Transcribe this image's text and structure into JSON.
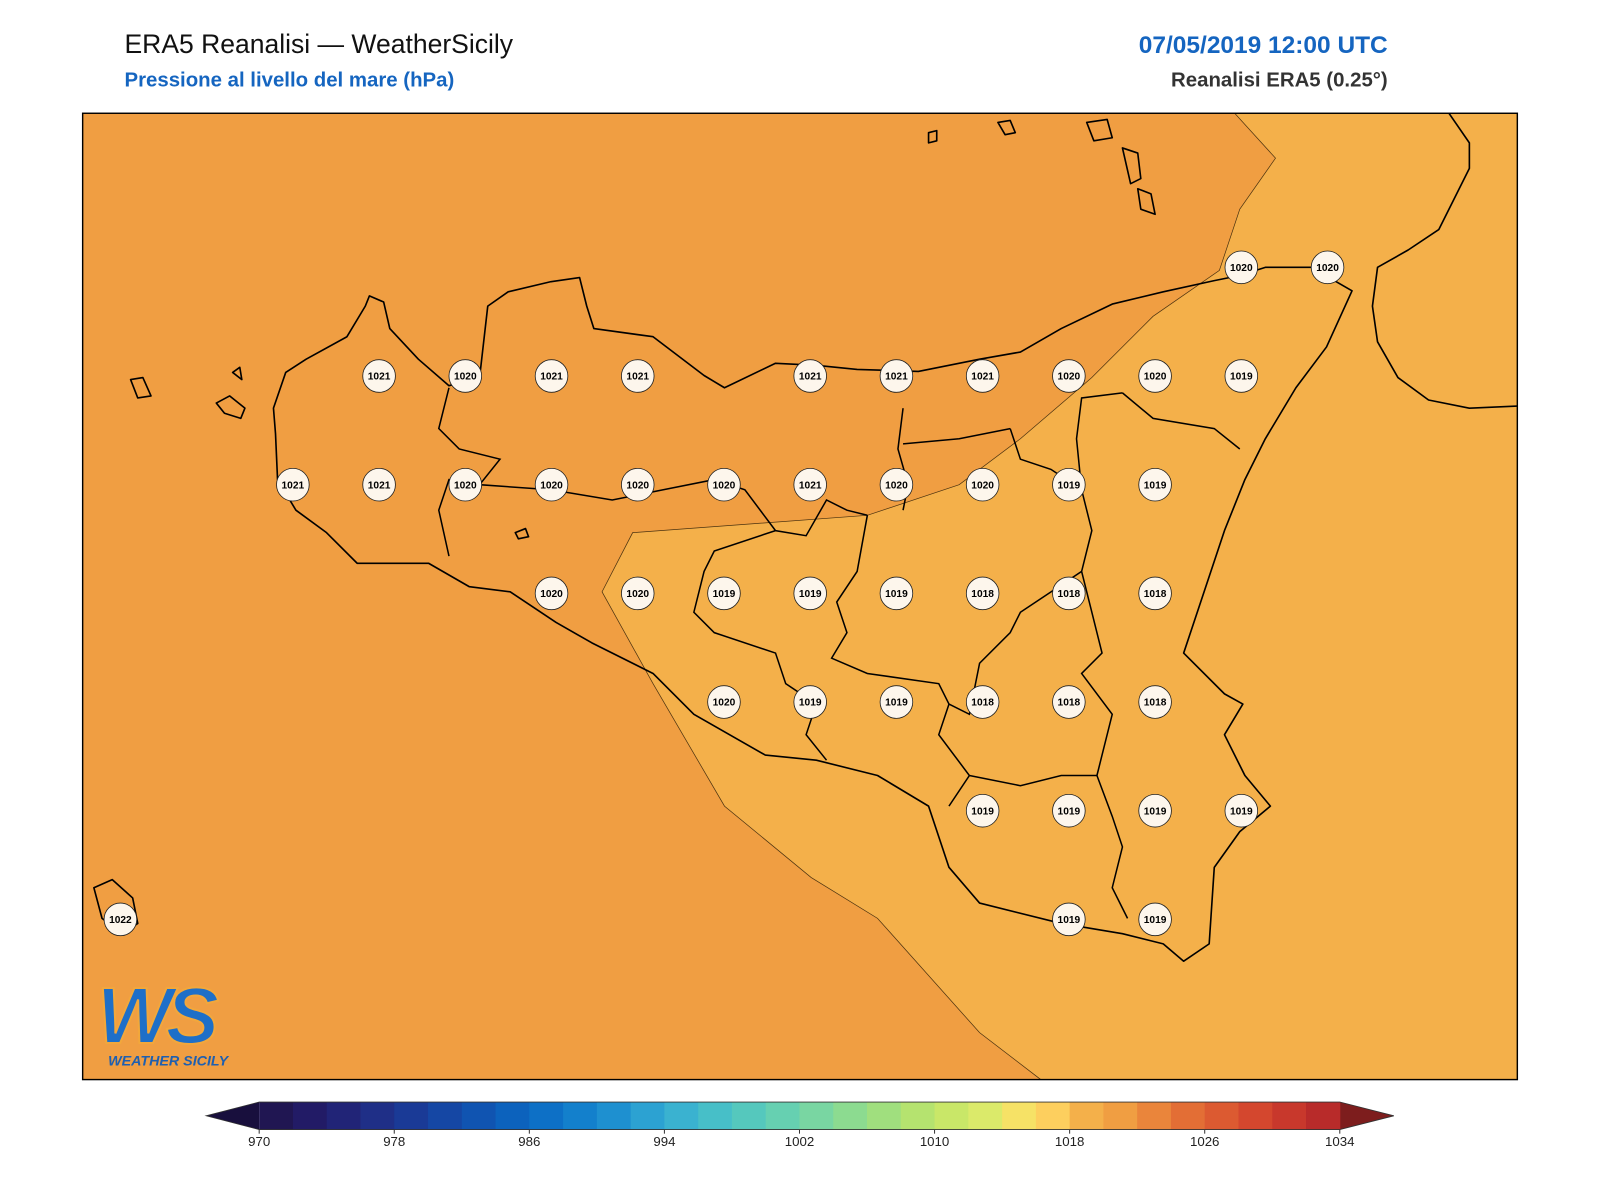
{
  "header": {
    "title": "ERA5 Reanalisi — WeatherSicily",
    "subtitle": "Pressione al livello del mare (hPa)",
    "datetime": "07/05/2019 12:00 UTC",
    "source": "Reanalisi ERA5 (0.25°)"
  },
  "stations": [
    1020,
    1020,
    1021,
    1020,
    1021,
    1021,
    1021,
    1021,
    1021,
    1020,
    1020,
    1019,
    1021,
    1021,
    1020,
    1020,
    1020,
    1020,
    1021,
    1020,
    1020,
    1019,
    1019,
    1020,
    1020,
    1019,
    1019,
    1019,
    1018,
    1018,
    1018,
    1020,
    1019,
    1019,
    1018,
    1018,
    1018,
    1019,
    1019,
    1019,
    1019,
    1022,
    1019,
    1019
  ],
  "colorbar": {
    "ticks": [
      970,
      978,
      986,
      994,
      1002,
      1010,
      1018,
      1026,
      1034
    ],
    "colors": [
      "#201652",
      "#221b66",
      "#212477",
      "#1f2f87",
      "#1a3a96",
      "#1547a4",
      "#1054b1",
      "#0c62bd",
      "#0d70c6",
      "#1380cc",
      "#1e90d0",
      "#2ca2d2",
      "#3ab2d0",
      "#47bfc8",
      "#55c8bd",
      "#66d0b1",
      "#79d6a2",
      "#8cdb90",
      "#a0df7e",
      "#b5e36f",
      "#c9e768",
      "#dbea6a",
      "#f6e266",
      "#fdcf5e",
      "#f4b04a",
      "#f09e42",
      "#ea853b",
      "#e36e35",
      "#dc5a31",
      "#d4472e",
      "#c8382c",
      "#b82b2a"
    ],
    "under_color": "#180f3d",
    "over_color": "#7d1d1d"
  },
  "logo": {
    "mark": "WS",
    "name": "WEATHER SICILY"
  }
}
